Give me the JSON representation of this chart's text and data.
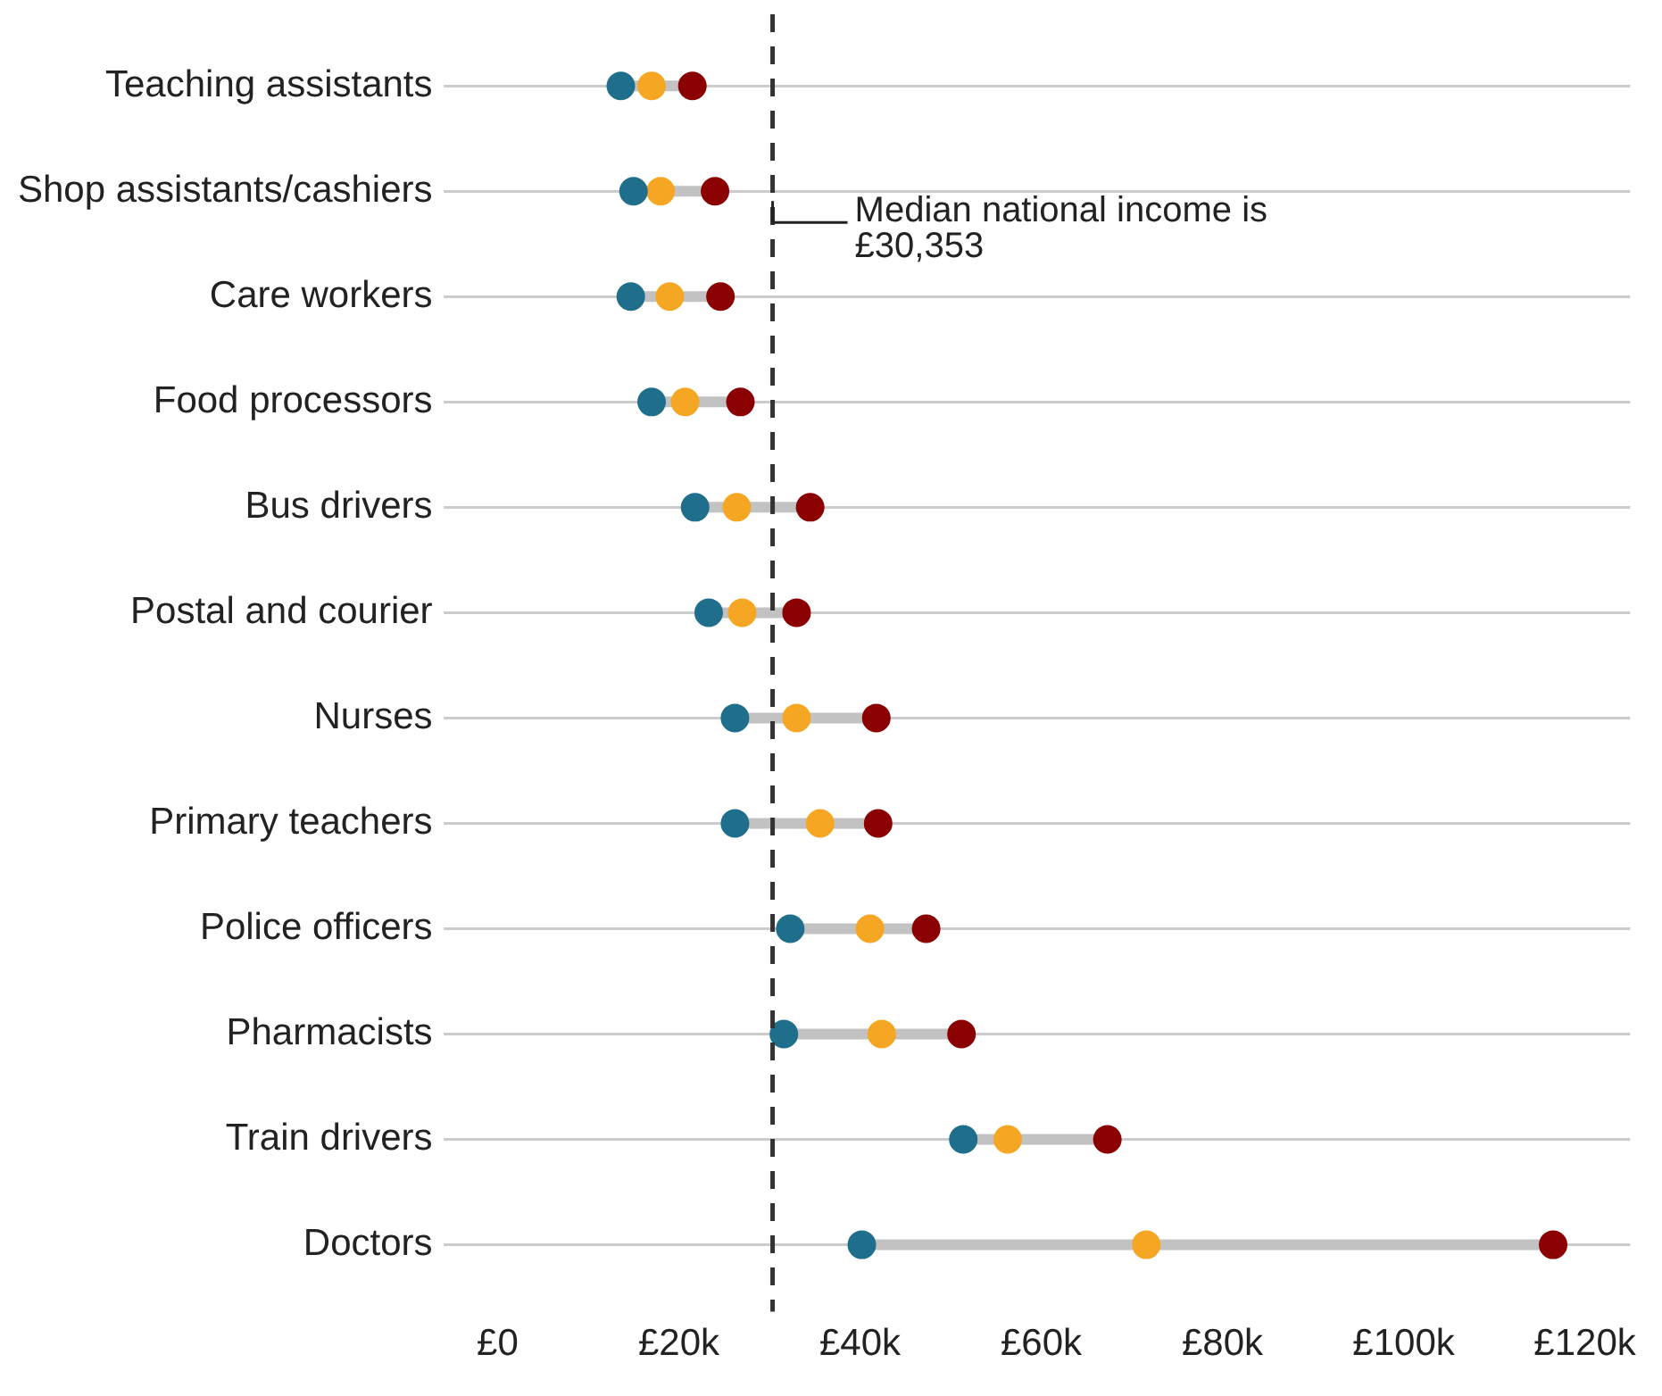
{
  "chart_data": {
    "type": "scatter",
    "orientation": "horizontal",
    "marker": "circle",
    "grid": "y",
    "categories": [
      "Teaching assistants",
      "Shop assistants/cashiers",
      "Care workers",
      "Food processors",
      "Bus drivers",
      "Postal and courier",
      "Nurses",
      "Primary teachers",
      "Police officers",
      "Pharmacists",
      "Train drivers",
      "Doctors"
    ],
    "series": [
      {
        "color": "#1f6e8c",
        "values": [
          13600,
          15000,
          14700,
          17000,
          21800,
          23300,
          26200,
          26200,
          32300,
          31600,
          51400,
          40200
        ]
      },
      {
        "color": "#f5a623",
        "values": [
          17000,
          18000,
          19000,
          20700,
          26400,
          27000,
          33000,
          35600,
          41100,
          42400,
          56300,
          71600
        ]
      },
      {
        "color": "#8b0000",
        "values": [
          21500,
          24000,
          24600,
          26800,
          34500,
          33000,
          41800,
          42000,
          47300,
          51200,
          67300,
          116500
        ]
      }
    ],
    "xlim": [
      -6000,
      125000
    ],
    "xticks": [
      {
        "value": 0,
        "label": "£0"
      },
      {
        "value": 20000,
        "label": "£20k"
      },
      {
        "value": 40000,
        "label": "£40k"
      },
      {
        "value": 60000,
        "label": "£60k"
      },
      {
        "value": 80000,
        "label": "£80k"
      },
      {
        "value": 100000,
        "label": "£100k"
      },
      {
        "value": 120000,
        "label": "£120k"
      }
    ],
    "ref_lines": [
      {
        "axis": "x",
        "value": 30353,
        "label": "Median national income is £30,353",
        "line_style": "dashed",
        "color": "#333333"
      }
    ]
  }
}
